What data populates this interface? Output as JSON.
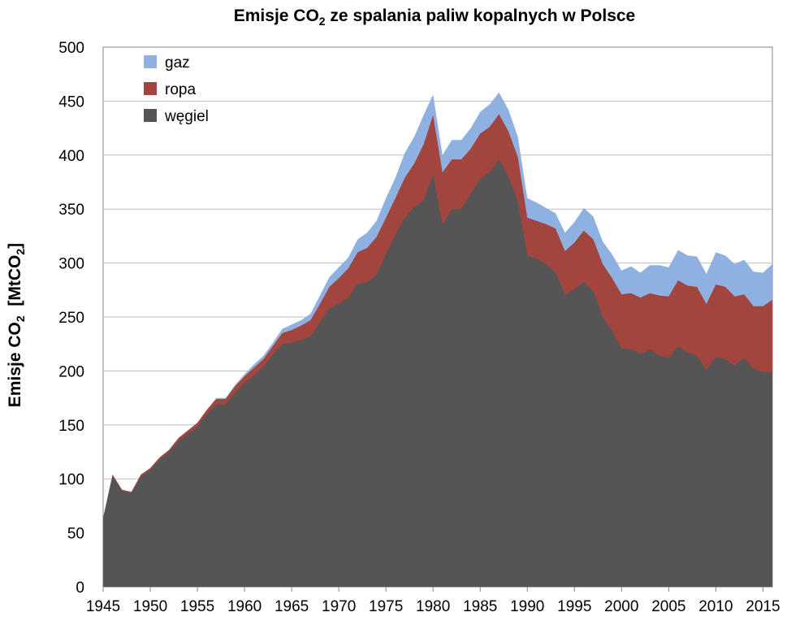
{
  "chart_data": {
    "type": "area",
    "stacked": true,
    "title_main": "Emisje CO",
    "title_sub": "2",
    "title_rest": " ze spalania paliw kopalnych w Polsce",
    "ylabel_main": "Emisje CO",
    "ylabel_sub": "2",
    "ylabel_mid": "  [MtCO",
    "ylabel_sub2": "2",
    "ylabel_end": "]",
    "xlabel": "",
    "xlim": [
      1945,
      2016
    ],
    "ylim": [
      0,
      500
    ],
    "grid": true,
    "legend_position": "top-left",
    "x_ticks": [
      "1945",
      "1950",
      "1955",
      "1960",
      "1965",
      "1970",
      "1975",
      "1980",
      "1985",
      "1990",
      "1995",
      "2000",
      "2005",
      "2010",
      "2015"
    ],
    "y_ticks": [
      "0",
      "50",
      "100",
      "150",
      "200",
      "250",
      "300",
      "350",
      "400",
      "450",
      "500"
    ],
    "x": [
      1945,
      1946,
      1947,
      1948,
      1949,
      1950,
      1951,
      1952,
      1953,
      1954,
      1955,
      1956,
      1957,
      1958,
      1959,
      1960,
      1961,
      1962,
      1963,
      1964,
      1965,
      1966,
      1967,
      1968,
      1969,
      1970,
      1971,
      1972,
      1973,
      1974,
      1975,
      1976,
      1977,
      1978,
      1979,
      1980,
      1981,
      1982,
      1983,
      1984,
      1985,
      1986,
      1987,
      1988,
      1989,
      1990,
      1991,
      1992,
      1993,
      1994,
      1995,
      1996,
      1997,
      1998,
      1999,
      2000,
      2001,
      2002,
      2003,
      2004,
      2005,
      2006,
      2007,
      2008,
      2009,
      2010,
      2011,
      2012,
      2013,
      2014,
      2015,
      2016
    ],
    "series": [
      {
        "name": "węgiel",
        "color": "#555555",
        "values": [
          63,
          103,
          89,
          87,
          102,
          108,
          118,
          125,
          135,
          142,
          148,
          160,
          169,
          169,
          180,
          189,
          196,
          204,
          215,
          225,
          226,
          229,
          232,
          245,
          258,
          262,
          268,
          281,
          282,
          289,
          308,
          326,
          342,
          352,
          358,
          382,
          336,
          350,
          350,
          364,
          378,
          384,
          396,
          380,
          357,
          307,
          304,
          299,
          291,
          271,
          276,
          282,
          274,
          250,
          237,
          221,
          220,
          216,
          220,
          214,
          212,
          223,
          217,
          214,
          201,
          213,
          211,
          205,
          212,
          202,
          199,
          199
        ]
      },
      {
        "name": "ropa",
        "color": "#a3453f",
        "values": [
          1,
          1,
          1,
          1,
          2,
          2,
          2,
          2,
          3,
          3,
          4,
          4,
          5,
          5,
          6,
          6,
          7,
          7,
          8,
          10,
          12,
          13,
          15,
          17,
          20,
          24,
          27,
          29,
          32,
          35,
          34,
          34,
          37,
          40,
          52,
          55,
          48,
          46,
          46,
          42,
          42,
          42,
          42,
          42,
          41,
          35,
          35,
          37,
          41,
          40,
          43,
          48,
          48,
          49,
          49,
          50,
          52,
          52,
          52,
          56,
          57,
          61,
          62,
          64,
          61,
          67,
          67,
          64,
          59,
          58,
          61,
          67
        ]
      },
      {
        "name": "gaz",
        "color": "#8fb1e2",
        "values": [
          0,
          0,
          0,
          0,
          0,
          0,
          0,
          0,
          0,
          0,
          0,
          0,
          1,
          1,
          1,
          2,
          3,
          3,
          3,
          4,
          5,
          5,
          6,
          8,
          9,
          10,
          10,
          12,
          14,
          15,
          18,
          19,
          23,
          25,
          27,
          19,
          16,
          18,
          18,
          19,
          20,
          21,
          20,
          20,
          19,
          18,
          17,
          15,
          14,
          17,
          19,
          21,
          21,
          21,
          22,
          22,
          25,
          23,
          26,
          28,
          27,
          28,
          28,
          28,
          28,
          30,
          29,
          30,
          32,
          32,
          31,
          33
        ]
      }
    ]
  }
}
